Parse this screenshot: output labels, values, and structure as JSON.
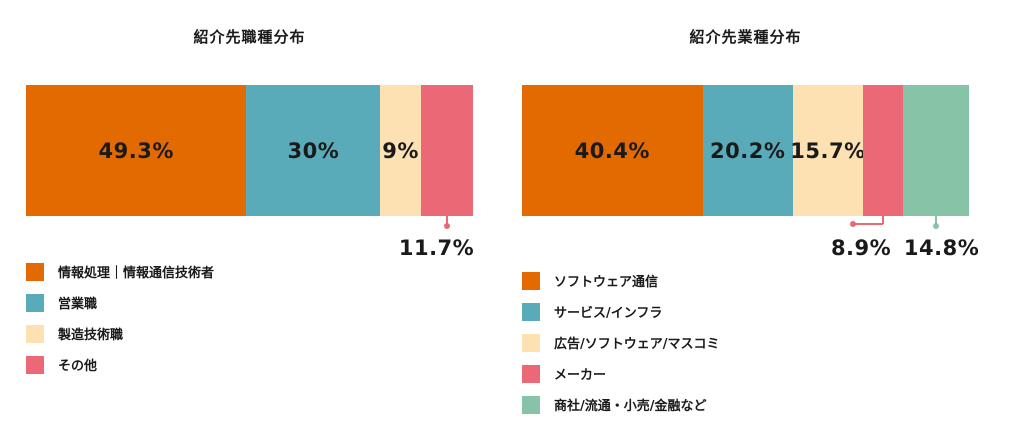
{
  "colors": {
    "orange": "#e36a00",
    "teal": "#5aabb9",
    "cream": "#fde1b3",
    "pink": "#eb6877",
    "green": "#86c3a7"
  },
  "chart_data": [
    {
      "type": "bar",
      "stacked": true,
      "orientation": "horizontal",
      "title": "紹介先職種分布",
      "series": [
        {
          "name": "情報処理｜情報通信技術者",
          "value": 49.3,
          "label": "49.3%",
          "color": "#e36a00",
          "label_position": "inside"
        },
        {
          "name": "営業職",
          "value": 30,
          "label": "30%",
          "color": "#5aabb9",
          "label_position": "inside"
        },
        {
          "name": "製造技術職",
          "value": 9,
          "label": "9%",
          "color": "#fde1b3",
          "label_position": "inside"
        },
        {
          "name": "その他",
          "value": 11.7,
          "label": "11.7%",
          "color": "#eb6877",
          "label_position": "below"
        }
      ],
      "legend_position": "bottom-left"
    },
    {
      "type": "bar",
      "stacked": true,
      "orientation": "horizontal",
      "title": "紹介先業種分布",
      "series": [
        {
          "name": "ソフトウェア通信",
          "value": 40.4,
          "label": "40.4%",
          "color": "#e36a00",
          "label_position": "inside"
        },
        {
          "name": "サービス/インフラ",
          "value": 20.2,
          "label": "20.2%",
          "color": "#5aabb9",
          "label_position": "inside"
        },
        {
          "name": "広告/ソフトウェア/マスコミ",
          "value": 15.7,
          "label": "15.7%",
          "color": "#fde1b3",
          "label_position": "inside"
        },
        {
          "name": "メーカー",
          "value": 8.9,
          "label": "8.9%",
          "color": "#eb6877",
          "label_position": "below"
        },
        {
          "name": "商社/流通・小売/金融など",
          "value": 14.8,
          "label": "14.8%",
          "color": "#86c3a7",
          "label_position": "below"
        }
      ],
      "legend_position": "bottom-left"
    }
  ]
}
